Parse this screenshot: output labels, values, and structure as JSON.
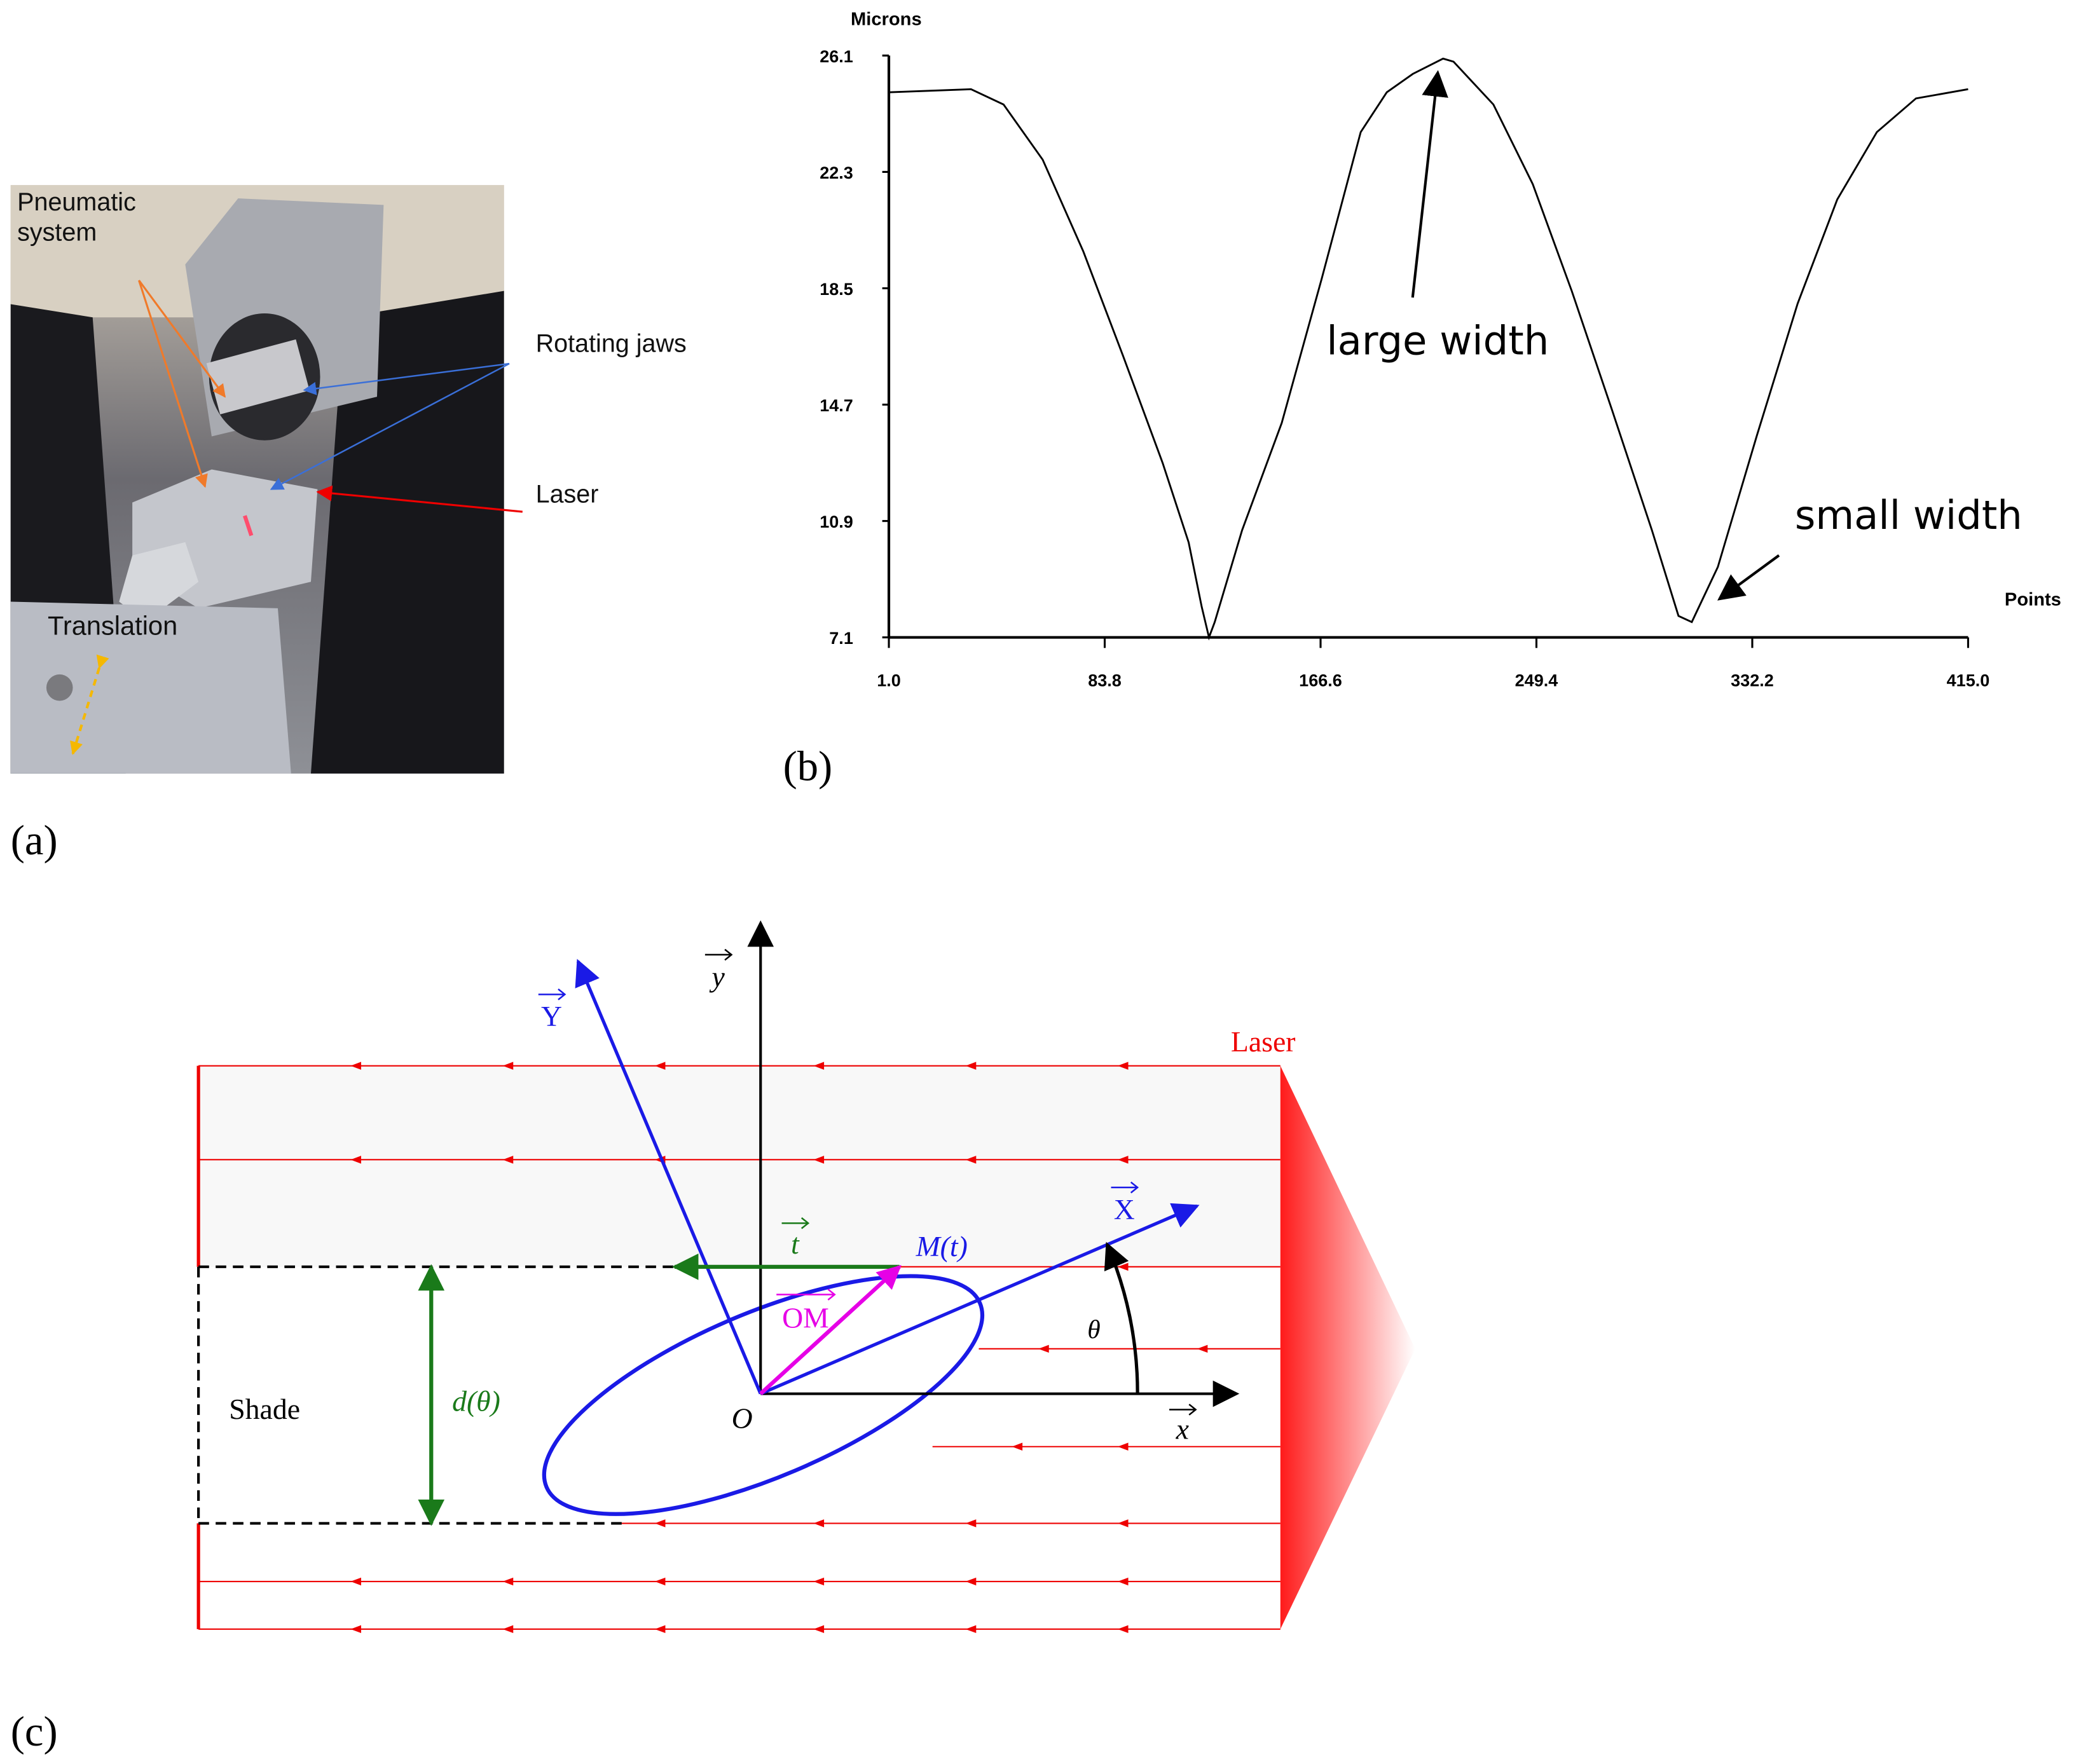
{
  "photo": {
    "panel_label": "(a)",
    "pneumatic_system": [
      "Pneumatic",
      "system"
    ],
    "rotating_jaws": "Rotating jaws",
    "laser": "Laser",
    "translation": "Translation"
  },
  "chart_data": {
    "type": "line",
    "panel_label": "(b)",
    "y_label": "Microns",
    "x_label": "Points",
    "xlim": [
      1,
      415
    ],
    "xticks": [
      {
        "value": 1,
        "label": "1.0"
      },
      83.8,
      166.6,
      249.4,
      332.2,
      {
        "value": 415,
        "label": "415.0"
      }
    ],
    "ylim": [
      7.1,
      26.1
    ],
    "yticks": [
      26.1,
      22.3,
      18.5,
      14.7,
      10.9,
      7.1
    ],
    "annotations": [
      "large width",
      "small width"
    ],
    "series": [
      {
        "color": "#000000",
        "x": [
          1,
          32.5,
          45,
          60,
          75.6,
          90.8,
          106,
          116,
          121,
          123.8,
          126,
          136.5,
          151.7,
          167,
          182,
          192,
          202,
          213.6,
          217.6,
          232.9,
          248,
          263,
          278.5,
          293.7,
          303.9,
          309,
          319,
          334,
          349.6,
          364.8,
          380,
          395,
          415
        ],
        "values": [
          24.9,
          25.0,
          24.5,
          22.7,
          19.7,
          16.3,
          12.8,
          10.2,
          8.1,
          7.1,
          7.6,
          10.6,
          14.1,
          18.8,
          23.6,
          24.9,
          25.5,
          26.0,
          25.9,
          24.5,
          21.9,
          18.4,
          14.5,
          10.6,
          7.8,
          7.6,
          9.4,
          13.7,
          18.0,
          21.4,
          23.6,
          24.7,
          25.0
        ]
      }
    ]
  },
  "diagram": {
    "panel_label": "(c)",
    "laser": "Laser",
    "shade": "Shade",
    "d_theta": "d(θ)",
    "origin": "O",
    "point": "M(t)",
    "theta": "θ",
    "y_axis": "y",
    "x_axis": "x",
    "Y_axis": "Y",
    "X_axis": "X",
    "tangent": "t",
    "om": "OM"
  }
}
